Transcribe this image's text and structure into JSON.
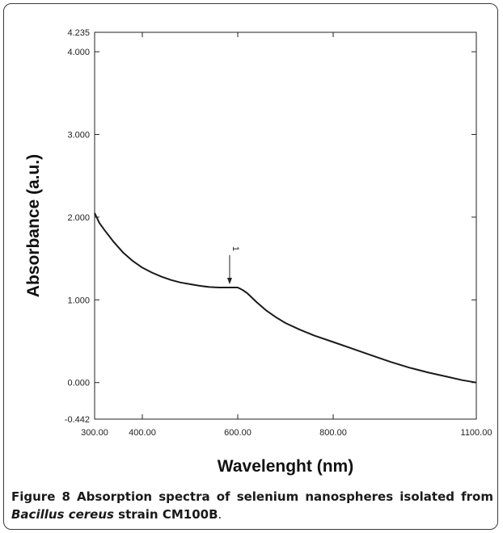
{
  "chart_data": {
    "type": "line",
    "xlabel": "Wavelenght (nm)",
    "ylabel": "Absorbance (a.u.)",
    "xlim": [
      300,
      1100
    ],
    "ylim": [
      -0.442,
      4.235
    ],
    "x_ticks": [
      300,
      400,
      600,
      800,
      1100
    ],
    "x_tick_labels": [
      "300.00",
      "400.00",
      "600.00",
      "800.00",
      "1100.00"
    ],
    "y_ticks": [
      -0.442,
      0,
      1,
      2,
      3,
      4,
      4.235
    ],
    "y_tick_labels": [
      "-0.442",
      "0.000",
      "1.000",
      "2.000",
      "3.000",
      "4.000",
      "4.235"
    ],
    "grid": false,
    "series": [
      {
        "x": [
          300,
          310,
          320,
          340,
          360,
          380,
          400,
          420,
          440,
          460,
          480,
          500,
          520,
          540,
          560,
          580,
          600,
          610,
          620,
          640,
          660,
          680,
          700,
          730,
          760,
          800,
          840,
          880,
          920,
          960,
          1000,
          1040,
          1070,
          1100
        ],
        "values": [
          2.05,
          1.93,
          1.85,
          1.7,
          1.57,
          1.47,
          1.39,
          1.33,
          1.28,
          1.24,
          1.21,
          1.19,
          1.17,
          1.155,
          1.15,
          1.15,
          1.15,
          1.12,
          1.08,
          0.97,
          0.87,
          0.79,
          0.72,
          0.64,
          0.57,
          0.49,
          0.41,
          0.33,
          0.25,
          0.18,
          0.12,
          0.07,
          0.03,
          0.0
        ]
      }
    ],
    "annotations": [
      {
        "text": "1",
        "x": 583,
        "y": 1.15
      }
    ]
  },
  "caption": {
    "label": "Figure 8",
    "text_1": " Absorption spectra of selenium nanospheres isolated from ",
    "species": "Bacillus cereus",
    "text_2": " strain CM100B",
    "end": "."
  }
}
